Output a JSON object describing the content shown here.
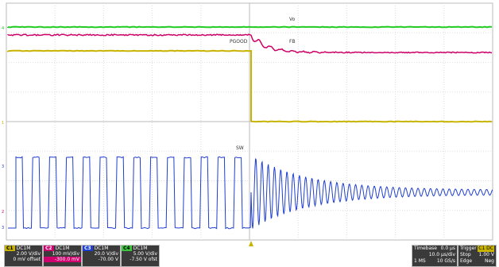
{
  "labels": {
    "vo": "Vo",
    "fb": "FB",
    "pgood": "PGOOD",
    "sw": "SW"
  },
  "channels": [
    {
      "id": "C1",
      "name": "DC1M",
      "scale": "2.00 V/div",
      "offset": "0 mV offset",
      "color": "#c8b400"
    },
    {
      "id": "C2",
      "name": "DC1M",
      "scale": "100 mV/div",
      "offset": "-300.0 mV",
      "color": "#d0006f"
    },
    {
      "id": "C3",
      "name": "DC1M",
      "scale": "20.0 V/div",
      "offset": "-70.00 V",
      "color": "#1f3fd0"
    },
    {
      "id": "C4",
      "name": "DC1M",
      "scale": "5.00 V/div",
      "offset": "-7.50 V ofst",
      "color": "#3cc43c"
    }
  ],
  "timebase": {
    "label": "Timebase",
    "value": "0.0 µs",
    "per_div": "10.0 µs/div",
    "samples": "1 MS",
    "rate": "10 GS/s"
  },
  "trigger": {
    "label": "Trigger",
    "chan": "C1 DC",
    "mode": "Stop",
    "level": "1.00 V",
    "type": "Edge",
    "slope": "Neg"
  },
  "colors": {
    "vo": "#22cc22",
    "fb": "#cc0066",
    "pgood": "#c8b400",
    "sw": "#1f3fd0",
    "grid": "#cccccc"
  }
}
